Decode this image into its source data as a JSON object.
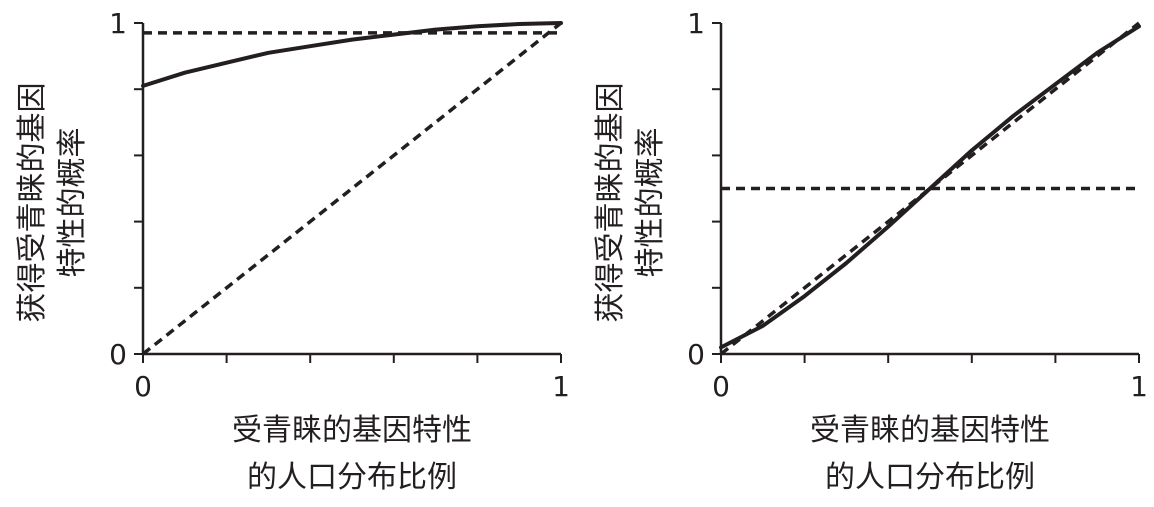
{
  "chart_data": [
    {
      "type": "line",
      "xlabel": [
        "受青睐的基因特性",
        "的人口分布比例"
      ],
      "ylabel": [
        "获得受青睐的基因",
        "特性的概率"
      ],
      "xlim": [
        0,
        1
      ],
      "ylim": [
        0,
        1
      ],
      "xtick_labels": [
        "0",
        "1"
      ],
      "ytick_labels": [
        "0",
        "1"
      ],
      "x_minor_ticks": 5,
      "y_minor_ticks": 5,
      "grid": false,
      "series": [
        {
          "style": "solid",
          "x": [
            0,
            0.1,
            0.2,
            0.3,
            0.4,
            0.5,
            0.6,
            0.7,
            0.8,
            0.9,
            1.0
          ],
          "y": [
            0.81,
            0.85,
            0.88,
            0.91,
            0.93,
            0.95,
            0.965,
            0.98,
            0.99,
            0.997,
            1.0
          ]
        },
        {
          "style": "dashed",
          "x": [
            0,
            1
          ],
          "y": [
            0,
            1
          ]
        },
        {
          "style": "dashed",
          "x": [
            0,
            1
          ],
          "y": [
            0.97,
            0.97
          ]
        }
      ]
    },
    {
      "type": "line",
      "xlabel": [
        "受青睐的基因特性",
        "的人口分布比例"
      ],
      "ylabel": [
        "获得受青睐的基因",
        "特性的概率"
      ],
      "xlim": [
        0,
        1
      ],
      "ylim": [
        0,
        1
      ],
      "xtick_labels": [
        "0",
        "1"
      ],
      "ytick_labels": [
        "0",
        "1"
      ],
      "x_minor_ticks": 5,
      "y_minor_ticks": 5,
      "grid": false,
      "series": [
        {
          "style": "solid",
          "x": [
            0,
            0.1,
            0.2,
            0.3,
            0.4,
            0.5,
            0.6,
            0.7,
            0.8,
            0.9,
            1.0
          ],
          "y": [
            0.02,
            0.085,
            0.175,
            0.275,
            0.385,
            0.5,
            0.615,
            0.72,
            0.815,
            0.91,
            0.99
          ]
        },
        {
          "style": "dashed",
          "x": [
            0,
            1
          ],
          "y": [
            0,
            1
          ]
        },
        {
          "style": "dashed",
          "x": [
            0,
            1
          ],
          "y": [
            0.5,
            0.5
          ]
        }
      ]
    }
  ]
}
